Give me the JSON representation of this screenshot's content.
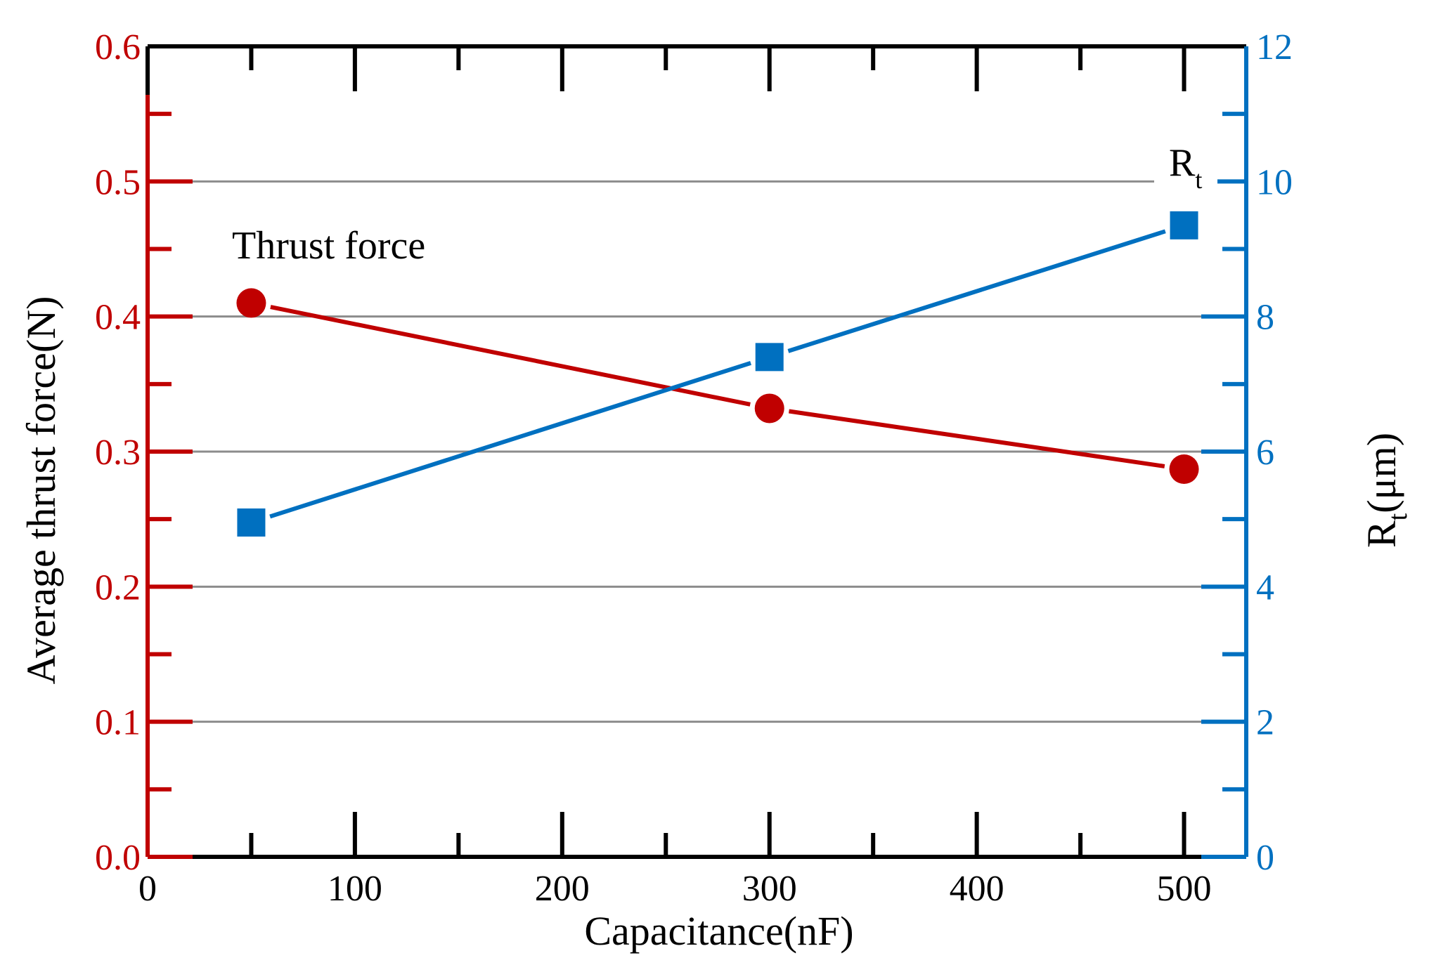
{
  "chart_data": {
    "type": "line",
    "title": "",
    "xlabel": "Capacitance(nF)",
    "ylabel_left": "Average thrust force(N)",
    "ylabel_right": {
      "main": "R",
      "sub": "t",
      "rest": "(μm)"
    },
    "xlim": [
      0,
      530
    ],
    "ylim_left": [
      0,
      0.6
    ],
    "ylim_right": [
      0,
      12
    ],
    "x_ticks": [
      "0",
      "100",
      "200",
      "300",
      "400",
      "500"
    ],
    "y_left_ticks": [
      "0.0",
      "0.1",
      "0.2",
      "0.3",
      "0.4",
      "0.5",
      "0.6"
    ],
    "y_right_ticks": [
      "0",
      "2",
      "4",
      "6",
      "8",
      "10",
      "12"
    ],
    "grid": true,
    "series": [
      {
        "name": "Thrust force",
        "axis": "left",
        "marker": "circle",
        "color": "#c00000",
        "x": [
          50,
          300,
          500
        ],
        "values": [
          0.41,
          0.332,
          0.287
        ]
      },
      {
        "name": "R",
        "name_sub": "t",
        "axis": "right",
        "marker": "square",
        "color": "#0070c0",
        "x": [
          50,
          300,
          500
        ],
        "values": [
          4.95,
          7.4,
          9.35
        ]
      }
    ],
    "annotations": {
      "thrust_label": "Thrust force",
      "rt_label": {
        "main": "R",
        "sub": "t"
      }
    }
  }
}
